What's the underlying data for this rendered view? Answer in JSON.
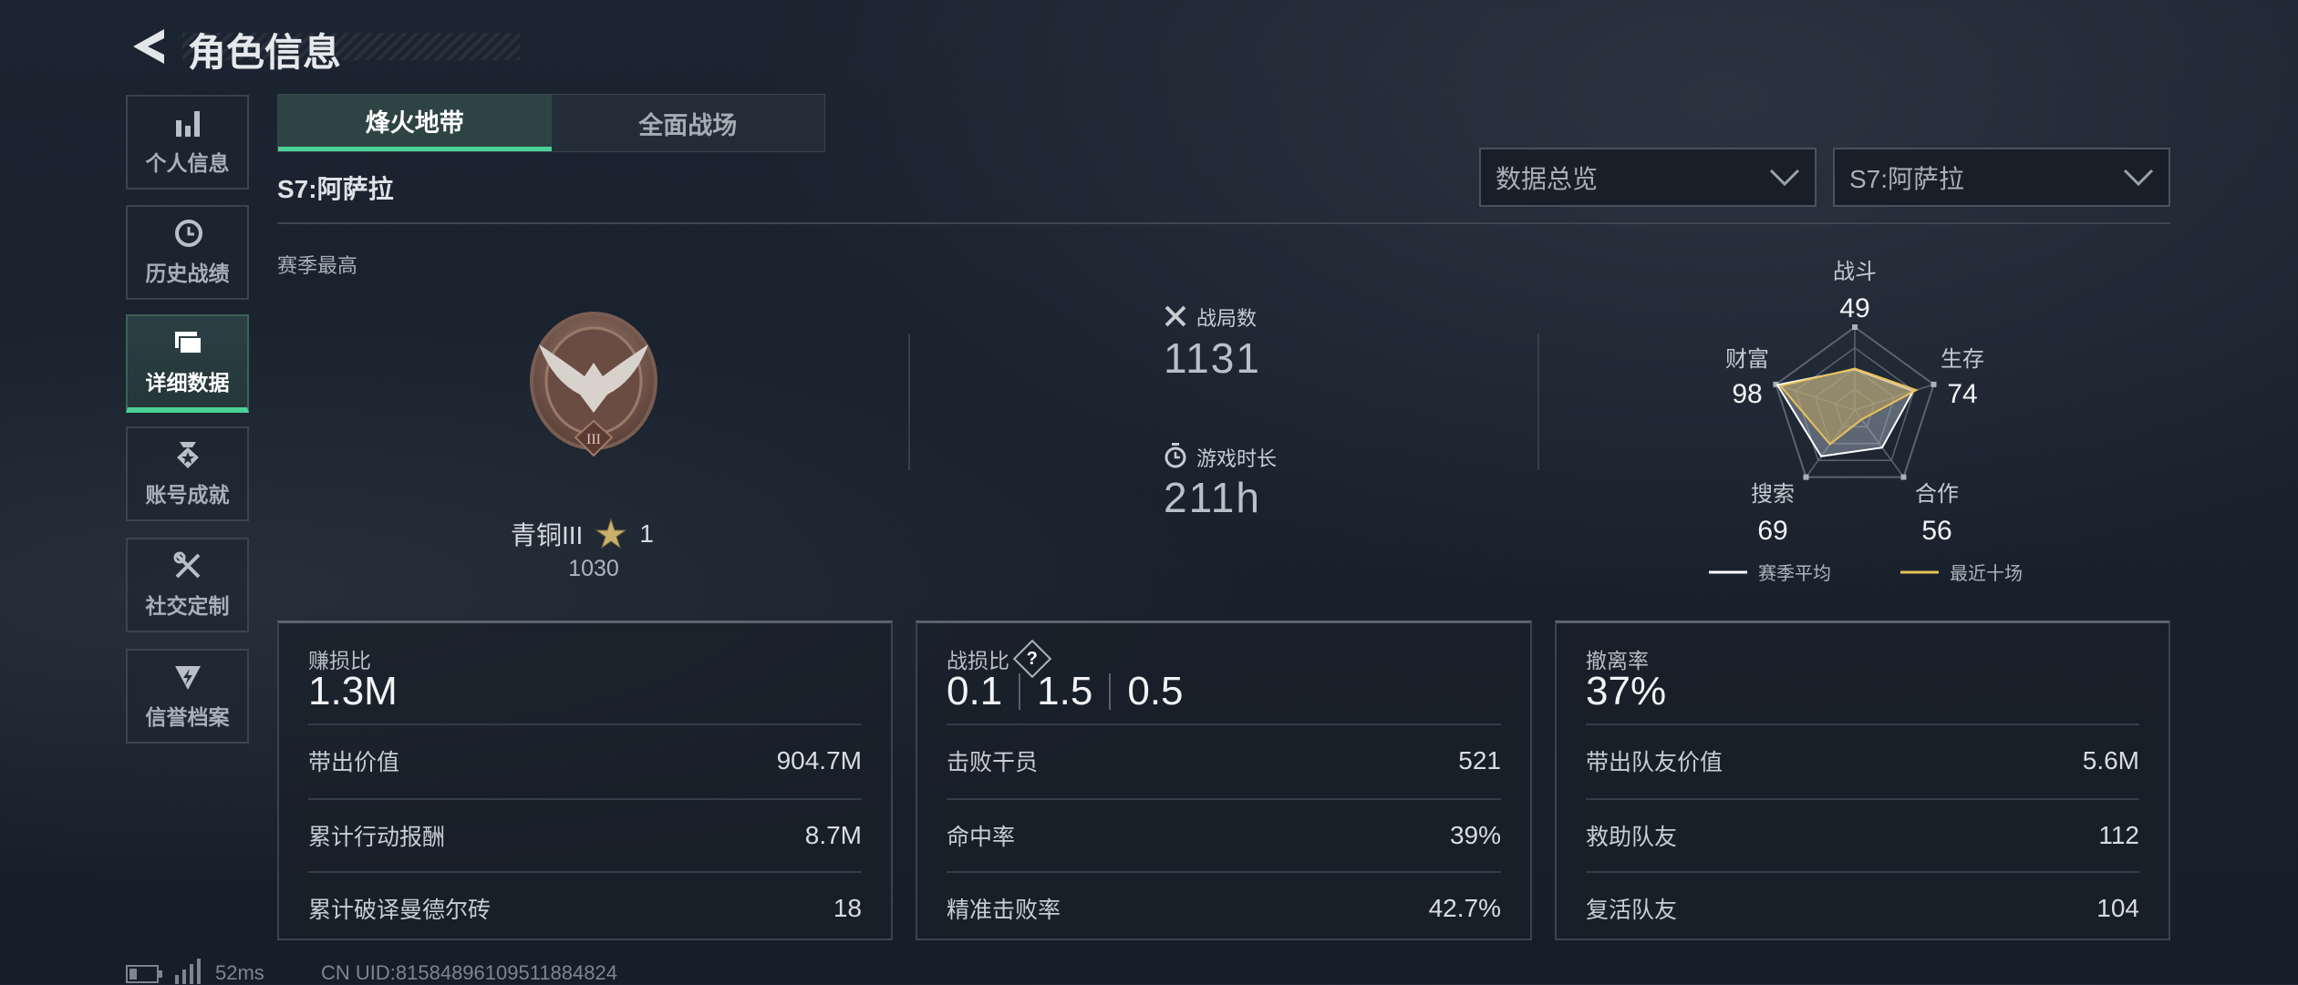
{
  "header": {
    "title": "角色信息",
    "back_icon": "back-arrow-icon"
  },
  "sidebar": {
    "items": [
      {
        "label": "个人信息",
        "icon": "bar-chart-icon",
        "active": false
      },
      {
        "label": "历史战绩",
        "icon": "history-clock-icon",
        "active": false
      },
      {
        "label": "详细数据",
        "icon": "folders-icon",
        "active": true
      },
      {
        "label": "账号成就",
        "icon": "medal-icon",
        "active": false
      },
      {
        "label": "社交定制",
        "icon": "tools-icon",
        "active": false
      },
      {
        "label": "信誉档案",
        "icon": "shield-bolt-icon",
        "active": false
      }
    ]
  },
  "tabs": [
    {
      "label": "烽火地带",
      "active": true
    },
    {
      "label": "全面战场",
      "active": false
    }
  ],
  "season_label": "S7:阿萨拉",
  "filters": {
    "view": "数据总览",
    "season": "S7:阿萨拉"
  },
  "season_best": {
    "heading": "赛季最高",
    "rank": "青铜III",
    "stars": "1",
    "score": "1030",
    "badge_numeral": "III"
  },
  "summary": {
    "matches_label": "战局数",
    "matches": "1131",
    "playtime_label": "游戏时长",
    "playtime": "211h"
  },
  "chart_data": {
    "type": "radar",
    "axes": [
      "战斗",
      "生存",
      "合作",
      "搜索",
      "财富"
    ],
    "range": [
      0,
      100
    ],
    "series": [
      {
        "name": "赛季平均",
        "color": "#ffffff",
        "values": [
          49,
          74,
          56,
          69,
          98
        ]
      },
      {
        "name": "最近十场",
        "color": "#e8c15a",
        "values": [
          50,
          78,
          14,
          51,
          94
        ]
      }
    ],
    "displayed_values": [
      "49",
      "74",
      "56",
      "69",
      "98"
    ],
    "legend": "bottom"
  },
  "panels": [
    {
      "label": "赚损比",
      "value": "1.3M",
      "rows": [
        {
          "k": "带出价值",
          "v": "904.7M"
        },
        {
          "k": "累计行动报酬",
          "v": "8.7M"
        },
        {
          "k": "累计破译曼德尔砖",
          "v": "18"
        }
      ]
    },
    {
      "label": "战损比",
      "values": [
        "0.1",
        "1.5",
        "0.5"
      ],
      "help": "?",
      "rows": [
        {
          "k": "击败干员",
          "v": "521"
        },
        {
          "k": "命中率",
          "v": "39%"
        },
        {
          "k": "精准击败率",
          "v": "42.7%"
        }
      ]
    },
    {
      "label": "撤离率",
      "value": "37%",
      "rows": [
        {
          "k": "带出队友价值",
          "v": "5.6M"
        },
        {
          "k": "救助队友",
          "v": "112"
        },
        {
          "k": "复活队友",
          "v": "104"
        }
      ]
    }
  ],
  "footer": {
    "ping": "52ms",
    "uid": "CN UID:81584896109511884824"
  }
}
